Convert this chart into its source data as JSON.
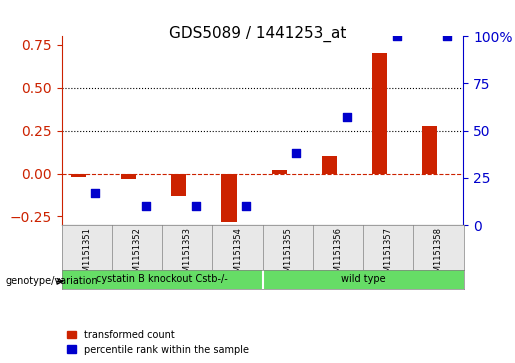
{
  "title": "GDS5089 / 1441253_at",
  "samples": [
    "GSM1151351",
    "GSM1151352",
    "GSM1151353",
    "GSM1151354",
    "GSM1151355",
    "GSM1151356",
    "GSM1151357",
    "GSM1151358"
  ],
  "transformed_count": [
    -0.02,
    -0.03,
    -0.13,
    -0.28,
    0.02,
    0.1,
    0.7,
    0.28
  ],
  "percentile_rank": [
    0.17,
    0.1,
    0.1,
    0.1,
    0.38,
    0.57,
    1.0,
    1.0
  ],
  "red_color": "#cc2200",
  "blue_color": "#0000cc",
  "dashed_line_y": 0.0,
  "dotted_lines": [
    0.25,
    0.5
  ],
  "ylim_left": [
    -0.3,
    0.8
  ],
  "ylim_right": [
    0.0,
    1.0
  ],
  "right_ticks": [
    0,
    25,
    50,
    75,
    100
  ],
  "right_tick_labels": [
    "0",
    "25",
    "50",
    "75",
    "100%"
  ],
  "left_ticks": [
    -0.25,
    0.0,
    0.25,
    0.5,
    0.75
  ],
  "group1_label": "cystatin B knockout Cstb-/-",
  "group2_label": "wild type",
  "group1_indices": [
    0,
    1,
    2,
    3
  ],
  "group2_indices": [
    4,
    5,
    6,
    7
  ],
  "group_color": "#66dd66",
  "row_label": "genotype/variation",
  "legend_red": "transformed count",
  "legend_blue": "percentile rank within the sample",
  "bar_width": 0.3,
  "marker_size": 6,
  "bg_color": "#e8e8e8",
  "plot_bg_color": "#ffffff"
}
